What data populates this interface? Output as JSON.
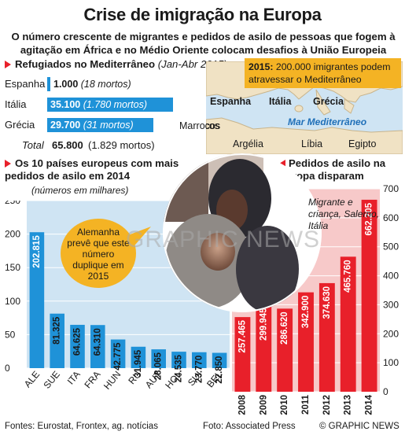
{
  "title": "Crise de imigração na Europa",
  "subtitle": "O número crescente de migrantes e pedidos de asilo de pessoas que fogem à agitação em África e no Médio Oriente colocam desafios à União Europeia",
  "refugees": {
    "heading": "Refugiados no Mediterrâneo",
    "period": "(Jan-Abr 2015)",
    "rows": [
      {
        "country": "Espanha",
        "value": "1.000",
        "deaths": "(18 mortos)",
        "num": 1000
      },
      {
        "country": "Itália",
        "value": "35.100",
        "deaths": "(1.780 mortos)",
        "num": 35100
      },
      {
        "country": "Grécia",
        "value": "29.700",
        "deaths": "(31 mortos)",
        "num": 29700
      }
    ],
    "total_label": "Total",
    "total_value": "65.800",
    "total_deaths": "(1.829 mortos)"
  },
  "map": {
    "callout_year": "2015:",
    "callout_text": "200.000 imigrantes podem atravessar o Mediterrâneo",
    "labels": {
      "spain": "Espanha",
      "italy": "Itália",
      "greece": "Grécia",
      "sea": "Mar Mediterrâneo",
      "morocco": "Marrocos",
      "algeria": "Argélia",
      "libya": "Líbia",
      "egypt": "Egipto"
    },
    "colors": {
      "sea": "#cfe4f3",
      "land": "#f0e2c4",
      "land_border": "#c8b48c"
    }
  },
  "photo": {
    "caption": "Migrante e criança, Salerno, Itália"
  },
  "bubble": {
    "text": "Alemanha prevê que este número duplique em 2015",
    "color": "#f4b324"
  },
  "watermark": "GRAPHIC NEWS",
  "chart_data": [
    {
      "type": "bar",
      "heading": "Os 10 países europeus com mais pedidos de asilo em 2014",
      "ylabel": "(números em milhares)",
      "ylim": [
        0,
        250
      ],
      "yticks": [
        "250",
        "200",
        "150",
        "100",
        "50",
        "0"
      ],
      "categories": [
        "ALE",
        "SUE",
        "ITA",
        "FRA",
        "HUN",
        "RU",
        "AUT",
        "HOL",
        "SUI",
        "BEL"
      ],
      "values": [
        202.815,
        81.325,
        64.625,
        64.31,
        42.775,
        31.945,
        28.065,
        24.535,
        23.77,
        22.85
      ],
      "labels": [
        "202.815",
        "81.325",
        "64.625",
        "64.310",
        "42.775",
        "31.945",
        "28.065",
        "24.535",
        "23.770",
        "22.850"
      ],
      "background": "#cfe4f3",
      "bar_color": "#1f92d8",
      "grid": true
    },
    {
      "type": "bar",
      "heading": "Pedidos de asilo na Europa disparam",
      "ylim": [
        0,
        700
      ],
      "yticks": [
        "700",
        "600",
        "500",
        "400",
        "300",
        "200",
        "100",
        "0"
      ],
      "categories": [
        "2008",
        "2009",
        "2010",
        "2011",
        "2012",
        "2013",
        "2014"
      ],
      "values": [
        257.465,
        299.945,
        286.62,
        342.9,
        374.63,
        465.76,
        662.205
      ],
      "labels": [
        "257.465",
        "299.945",
        "286.620",
        "342.900",
        "374.630",
        "465.760",
        "662.205"
      ],
      "background": "#f7c9c9",
      "bar_color": "#e8202a",
      "grid": true
    }
  ],
  "footer": {
    "sources": "Fontes: Eurostat, Frontex, ag. notícias",
    "photo_credit": "Foto: Associated Press",
    "copyright": "© GRAPHIC NEWS"
  }
}
